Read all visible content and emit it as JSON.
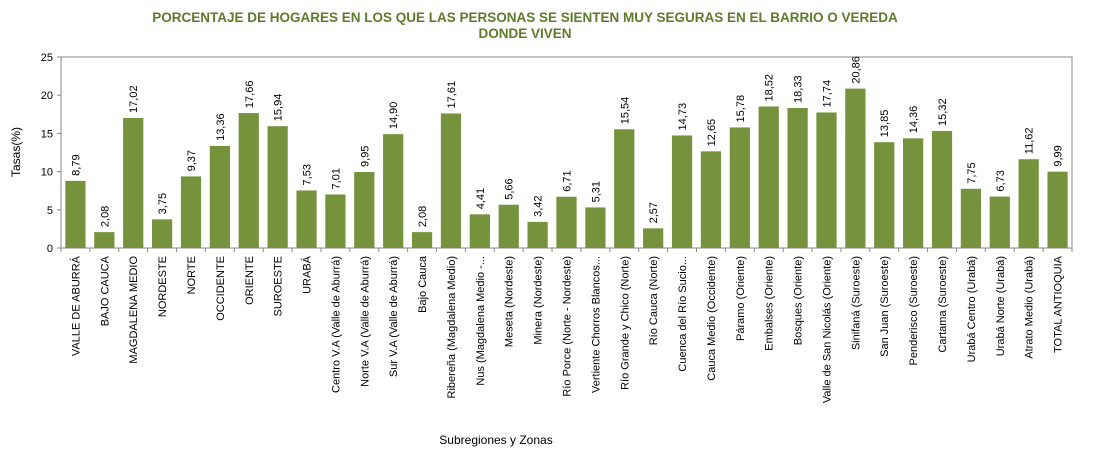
{
  "chart_data": {
    "type": "bar",
    "title_line1": "PORCENTAJE DE HOGARES EN LOS QUE LAS PERSONAS SE SIENTEN MUY SEGURAS EN EL BARRIO O VEREDA",
    "title_line2": "DONDE VIVEN",
    "xlabel": "Subregiones y Zonas",
    "ylabel": "Tasas(%)",
    "ylim": [
      0,
      25
    ],
    "yticks": [
      0,
      5,
      10,
      15,
      20,
      25
    ],
    "grid": false,
    "bar_color": "#76923c",
    "categories": [
      "VALLE DE ABURRÁ",
      "BAJO CAUCA",
      "MAGDALENA MEDIO",
      "NORDESTE",
      "NORTE",
      "OCCIDENTE",
      "ORIENTE",
      "SUROESTE",
      "URABÁ",
      "Centro V.A (Valle de Aburrá)",
      "Norte V.A (Valle de Aburrá)",
      "Sur V.A (Valle de Aburrá)",
      "Bajo Cauca",
      "Ribereña (Magdalena Medio)",
      "Nus (Magdalena Medio -...",
      "Meseta (Nordeste)",
      "Minera (Nordeste)",
      "Río Porce (Norte - Nordeste)",
      "Vertiente Chorros Blancos...",
      "Río Grande y Chico (Norte)",
      "Río Cauca (Norte)",
      "Cuenca del Río Sucio...",
      "Cauca Medio (Occidente)",
      "Páramo (Oriente)",
      "Embalses (Oriente)",
      "Bosques (Oriente)",
      "Valle de San Nicolás (Oriente)",
      "Sinifaná (Suroeste)",
      "San Juan (Suroeste)",
      "Penderisco (Suroeste)",
      "Cartama (Suroeste)",
      "Urabá Centro (Urabá)",
      "Urabá Norte (Urabá)",
      "Atrato Medio (Urabá)",
      "TOTAL ANTIOQUIA"
    ],
    "values": [
      8.79,
      2.08,
      17.02,
      3.75,
      9.37,
      13.36,
      17.66,
      15.94,
      7.53,
      7.01,
      9.95,
      14.9,
      2.08,
      17.61,
      4.41,
      5.66,
      3.42,
      6.71,
      5.31,
      15.54,
      2.57,
      14.73,
      12.65,
      15.78,
      18.52,
      18.33,
      17.74,
      20.86,
      13.85,
      14.36,
      15.32,
      7.75,
      6.73,
      11.62,
      9.99
    ],
    "value_labels": [
      "8,79",
      "2,08",
      "17,02",
      "3,75",
      "9,37",
      "13,36",
      "17,66",
      "15,94",
      "7,53",
      "7,01",
      "9,95",
      "14,90",
      "2,08",
      "17,61",
      "4,41",
      "5,66",
      "3,42",
      "6,71",
      "5,31",
      "15,54",
      "2,57",
      "14,73",
      "12,65",
      "15,78",
      "18,52",
      "18,33",
      "17,74",
      "20,86",
      "13,85",
      "14,36",
      "15,32",
      "7,75",
      "6,73",
      "11,62",
      "9,99"
    ]
  }
}
